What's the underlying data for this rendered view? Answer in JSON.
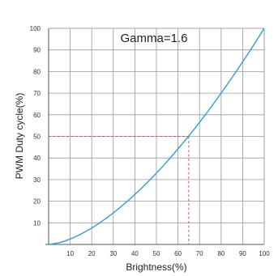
{
  "chart_data": {
    "type": "line",
    "annotation": "Gamma=1.6",
    "xlabel": "Brightness(%)",
    "ylabel": "PWM Duty cycle(%)",
    "xlim": [
      0,
      100
    ],
    "ylim": [
      0,
      100
    ],
    "x_ticks": [
      10,
      20,
      30,
      40,
      50,
      60,
      70,
      80,
      90,
      100
    ],
    "y_ticks": [
      10,
      20,
      30,
      40,
      50,
      60,
      70,
      80,
      90,
      100
    ],
    "grid": true,
    "series": [
      {
        "x": [
          0,
          5,
          10,
          15,
          20,
          25,
          30,
          35,
          40,
          45,
          50,
          55,
          60,
          65,
          70,
          75,
          80,
          85,
          90,
          95,
          100
        ],
        "y": [
          0,
          0.8,
          2.5,
          4.8,
          7.6,
          10.9,
          14.6,
          18.7,
          23.1,
          27.9,
          33.0,
          38.4,
          44.2,
          50.2,
          56.5,
          63.1,
          70.0,
          77.1,
          84.5,
          92.1,
          100
        ]
      }
    ],
    "reference": {
      "x": 65,
      "y": 50
    },
    "colors": {
      "curve": "#2a9fd8",
      "reference": "#e05050",
      "grid": "#9a9a9a",
      "plot_bg": "#ffffff",
      "page_bg": "#ffffff"
    }
  }
}
